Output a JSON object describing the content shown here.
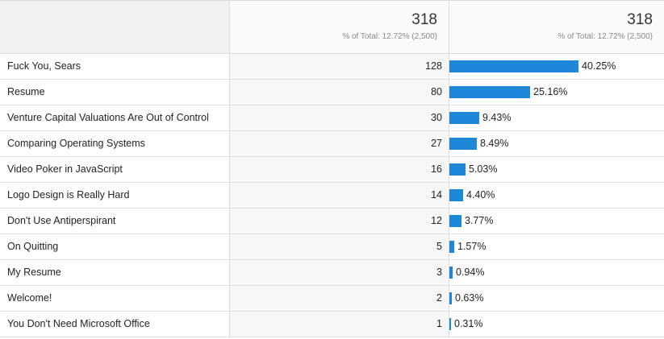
{
  "header": {
    "sessions_total": "318",
    "sessions_sub": "% of Total: 12.72% (2,500)",
    "pct_total": "318",
    "pct_sub": "% of Total: 12.72% (2,500)"
  },
  "rows": [
    {
      "name": "Fuck You, Sears",
      "value": "128",
      "pct_label": "40.25%",
      "pct": 40.25
    },
    {
      "name": "Resume",
      "value": "80",
      "pct_label": "25.16%",
      "pct": 25.16
    },
    {
      "name": "Venture Capital Valuations Are Out of Control",
      "value": "30",
      "pct_label": "9.43%",
      "pct": 9.43
    },
    {
      "name": "Comparing Operating Systems",
      "value": "27",
      "pct_label": "8.49%",
      "pct": 8.49
    },
    {
      "name": "Video Poker in JavaScript",
      "value": "16",
      "pct_label": "5.03%",
      "pct": 5.03
    },
    {
      "name": "Logo Design is Really Hard",
      "value": "14",
      "pct_label": "4.40%",
      "pct": 4.4
    },
    {
      "name": "Don't Use Antiperspirant",
      "value": "12",
      "pct_label": "3.77%",
      "pct": 3.77
    },
    {
      "name": "On Quitting",
      "value": "5",
      "pct_label": "1.57%",
      "pct": 1.57
    },
    {
      "name": "My Resume",
      "value": "3",
      "pct_label": "0.94%",
      "pct": 0.94
    },
    {
      "name": "Welcome!",
      "value": "2",
      "pct_label": "0.63%",
      "pct": 0.63
    },
    {
      "name": "You Don't Need Microsoft Office",
      "value": "1",
      "pct_label": "0.31%",
      "pct": 0.31
    }
  ],
  "colors": {
    "bar": "#1e88d8"
  }
}
